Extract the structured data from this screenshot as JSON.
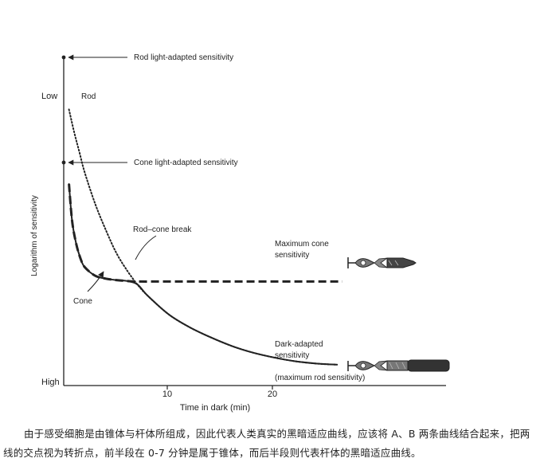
{
  "chart_data": {
    "type": "line",
    "title": "",
    "xlabel": "Time in dark (min)",
    "ylabel": "Logarithm of sensitivity",
    "x_ticks": [
      10,
      20
    ],
    "y_ticks": [
      "Low",
      "High"
    ],
    "xlim": [
      0,
      35
    ],
    "ylim": [
      0,
      10
    ],
    "y_direction": "top-low-bottom-high",
    "grid": false,
    "series": [
      {
        "name": "Rod",
        "style": "dotted",
        "x": [
          0.5,
          1,
          1.5,
          2,
          3,
          4,
          5,
          6,
          7,
          8,
          10,
          12,
          14,
          16,
          18,
          20,
          22,
          24,
          26
        ],
        "y": [
          9.1,
          8.3,
          7.6,
          6.9,
          5.8,
          4.9,
          4.1,
          3.5,
          3.0,
          2.6,
          1.95,
          1.5,
          1.15,
          0.85,
          0.62,
          0.45,
          0.32,
          0.24,
          0.2
        ]
      },
      {
        "name": "Cone",
        "style": "dashed",
        "x": [
          0.5,
          0.8,
          1.2,
          1.6,
          2,
          3,
          4,
          5,
          6,
          7,
          10,
          15,
          20,
          25,
          26.5
        ],
        "y": [
          6.5,
          5.2,
          4.4,
          3.9,
          3.6,
          3.3,
          3.2,
          3.15,
          3.12,
          3.1,
          3.1,
          3.1,
          3.1,
          3.1,
          3.1
        ]
      },
      {
        "name": "Dark-adapted sensitivity",
        "style": "solid",
        "x": [
          0.5,
          0.8,
          1.2,
          1.6,
          2,
          3,
          4,
          5,
          6,
          7,
          8,
          10,
          12,
          14,
          16,
          18,
          20,
          22,
          24,
          26
        ],
        "y": [
          6.5,
          5.2,
          4.4,
          3.9,
          3.6,
          3.3,
          3.2,
          3.15,
          3.12,
          3.0,
          2.6,
          1.95,
          1.5,
          1.15,
          0.85,
          0.62,
          0.45,
          0.32,
          0.24,
          0.2
        ]
      }
    ],
    "reference_levels": [
      {
        "label": "Rod light-adapted sensitivity",
        "y": 10.9
      },
      {
        "label": "Cone light-adapted sensitivity",
        "y": 7.5
      }
    ],
    "annotations": [
      {
        "id": "rod",
        "text": "Rod"
      },
      {
        "id": "cone",
        "text": "Cone"
      },
      {
        "id": "break",
        "text": "Rod–cone break"
      },
      {
        "id": "max_cone",
        "lines": [
          "Maximum cone",
          "sensitivity"
        ]
      },
      {
        "id": "dark",
        "lines": [
          "Dark-adapted",
          "sensitivity",
          "(maximum rod sensitivity)"
        ]
      }
    ]
  },
  "caption": "由于感受细胞是由锥体与杆体所组成，因此代表人类真实的黑暗适应曲线，应该将 A、B 两条曲线结合起来，把两线的交点视为转折点，前半段在 0-7 分钟是属于锥体，而后半段则代表杆体的黑暗适应曲线。",
  "colors": {
    "ink": "#222222",
    "cell_fill": "#666666",
    "cell_light": "#9a9a9a"
  }
}
